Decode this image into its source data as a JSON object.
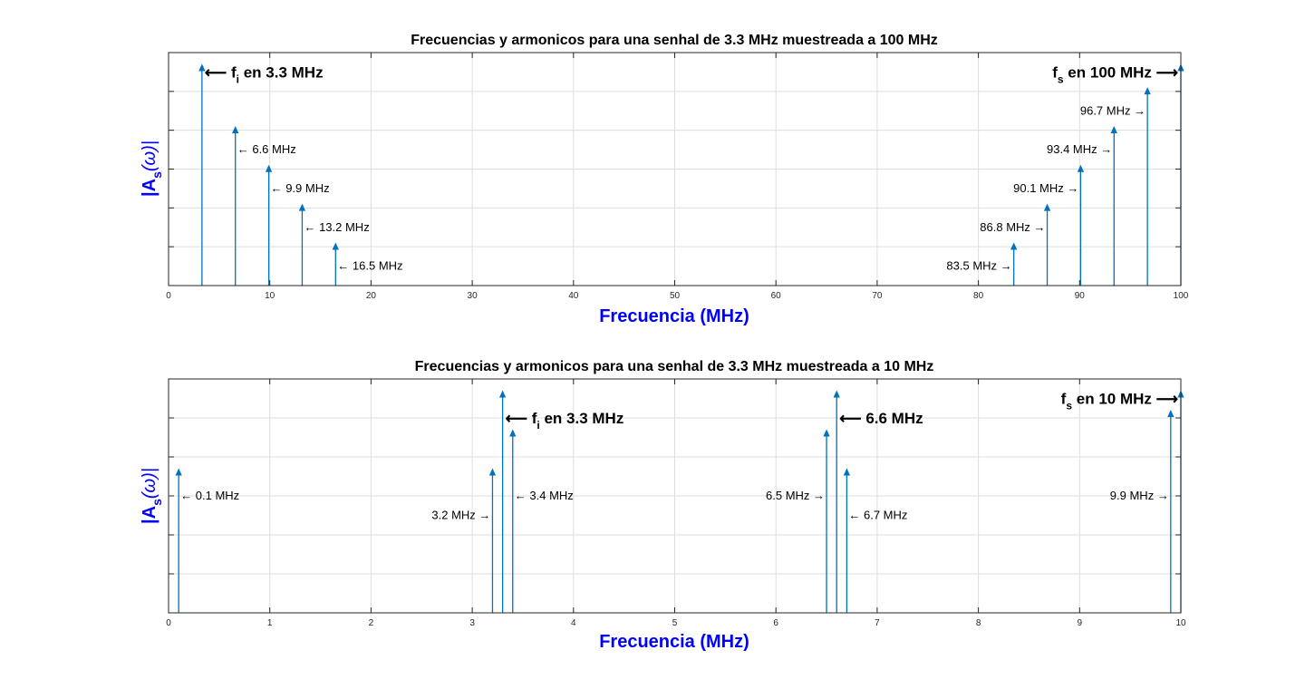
{
  "chart_data": [
    {
      "type": "stem",
      "title": "Frecuencias y armonicos para una senhal de 3.3 MHz muestreada a 100 MHz",
      "xlabel": "Frecuencia (MHz)",
      "ylabel_main": "|A",
      "ylabel_sub": "s",
      "ylabel_tail": "(ω)|",
      "xlim": [
        0,
        100
      ],
      "ylim": [
        0,
        6
      ],
      "xticks": [
        0,
        10,
        20,
        30,
        40,
        50,
        60,
        70,
        80,
        90,
        100
      ],
      "yticks": [
        1,
        2,
        3,
        4,
        5
      ],
      "grid": true,
      "color": "#0072bd",
      "stems": [
        {
          "x": 3.3,
          "y": 5.6
        },
        {
          "x": 6.6,
          "y": 4.0
        },
        {
          "x": 9.9,
          "y": 3.0
        },
        {
          "x": 13.2,
          "y": 2.0
        },
        {
          "x": 16.5,
          "y": 1.0
        },
        {
          "x": 83.5,
          "y": 1.0
        },
        {
          "x": 86.8,
          "y": 2.0
        },
        {
          "x": 90.1,
          "y": 3.0
        },
        {
          "x": 93.4,
          "y": 4.0
        },
        {
          "x": 96.7,
          "y": 5.0
        },
        {
          "x": 100,
          "y": 5.6
        }
      ],
      "annotations": [
        {
          "x": 3.3,
          "y": 5.5,
          "side": "right",
          "style": "big",
          "text": "f",
          "sub": "i",
          "rest": " en 3.3 MHz"
        },
        {
          "x": 6.6,
          "y": 3.5,
          "side": "right",
          "style": "small",
          "text": "6.6 MHz"
        },
        {
          "x": 9.9,
          "y": 2.5,
          "side": "right",
          "style": "small",
          "text": "9.9 MHz"
        },
        {
          "x": 13.2,
          "y": 1.5,
          "side": "right",
          "style": "small",
          "text": "13.2 MHz"
        },
        {
          "x": 16.5,
          "y": 0.5,
          "side": "right",
          "style": "small",
          "text": "16.5 MHz"
        },
        {
          "x": 83.5,
          "y": 0.5,
          "side": "left",
          "style": "small",
          "text": "83.5 MHz"
        },
        {
          "x": 86.8,
          "y": 1.5,
          "side": "left",
          "style": "small",
          "text": "86.8 MHz"
        },
        {
          "x": 90.1,
          "y": 2.5,
          "side": "left",
          "style": "small",
          "text": "90.1 MHz"
        },
        {
          "x": 93.4,
          "y": 3.5,
          "side": "left",
          "style": "small",
          "text": "93.4 MHz"
        },
        {
          "x": 96.7,
          "y": 4.5,
          "side": "left",
          "style": "small",
          "text": "96.7 MHz"
        },
        {
          "x": 100,
          "y": 5.5,
          "side": "left",
          "style": "big",
          "text": "f",
          "sub": "s",
          "rest": " en 100 MHz"
        }
      ]
    },
    {
      "type": "stem",
      "title": "Frecuencias y armonicos para una senhal de 3.3 MHz muestreada a 10 MHz",
      "xlabel": "Frecuencia (MHz)",
      "ylabel_main": "|A",
      "ylabel_sub": "s",
      "ylabel_tail": "(ω)|",
      "xlim": [
        0,
        10
      ],
      "ylim": [
        0,
        6
      ],
      "xticks": [
        0,
        1,
        2,
        3,
        4,
        5,
        6,
        7,
        8,
        9,
        10
      ],
      "yticks": [
        1,
        2,
        3,
        4,
        5
      ],
      "grid": true,
      "color": "#0072bd",
      "stems": [
        {
          "x": 0.1,
          "y": 3.6
        },
        {
          "x": 3.2,
          "y": 3.6
        },
        {
          "x": 3.3,
          "y": 5.6
        },
        {
          "x": 3.4,
          "y": 4.6
        },
        {
          "x": 6.5,
          "y": 4.6
        },
        {
          "x": 6.6,
          "y": 5.6
        },
        {
          "x": 6.7,
          "y": 3.6
        },
        {
          "x": 9.9,
          "y": 5.1
        },
        {
          "x": 10,
          "y": 5.6
        }
      ],
      "annotations": [
        {
          "x": 0.1,
          "y": 3.0,
          "side": "right",
          "style": "small",
          "text": "0.1 MHz"
        },
        {
          "x": 3.3,
          "y": 5.0,
          "side": "right",
          "style": "big",
          "text": "f",
          "sub": "i",
          "rest": " en 3.3 MHz"
        },
        {
          "x": 3.2,
          "y": 2.5,
          "side": "left",
          "style": "small",
          "text": "3.2 MHz"
        },
        {
          "x": 3.4,
          "y": 3.0,
          "side": "right",
          "style": "small",
          "text": "3.4 MHz"
        },
        {
          "x": 6.5,
          "y": 3.0,
          "side": "left",
          "style": "small",
          "text": "6.5 MHz"
        },
        {
          "x": 6.6,
          "y": 5.0,
          "side": "right",
          "style": "big",
          "text": "6.6 MHz"
        },
        {
          "x": 6.7,
          "y": 2.5,
          "side": "right",
          "style": "small",
          "text": "6.7 MHz"
        },
        {
          "x": 9.9,
          "y": 3.0,
          "side": "left",
          "style": "small",
          "text": "9.9 MHz"
        },
        {
          "x": 10,
          "y": 5.5,
          "side": "left",
          "style": "big",
          "text": "f",
          "sub": "s",
          "rest": " en 10 MHz"
        }
      ]
    }
  ]
}
